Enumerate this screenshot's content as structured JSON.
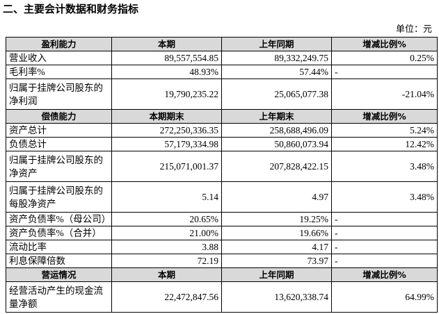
{
  "title": "二、主要会计数据和财务指标",
  "unit": "单位：元",
  "table": {
    "sections": [
      {
        "header": [
          "盈利能力",
          "本期",
          "上年同期",
          "增减比例%"
        ],
        "rows": [
          [
            [
              "营业收入"
            ],
            "89,557,554.85",
            "89,332,249.75",
            "0.25%"
          ],
          [
            [
              "毛利率%"
            ],
            "48.93%",
            "57.44%",
            "-"
          ],
          [
            [
              "归属于挂牌公司股东的",
              "净利润"
            ],
            "19,790,235.22",
            "25,065,077.38",
            "-21.04%"
          ]
        ]
      },
      {
        "header": [
          "偿债能力",
          "本期期末",
          "上年期末",
          "增减比例%"
        ],
        "rows": [
          [
            [
              "资产总计"
            ],
            "272,250,336.35",
            "258,688,496.09",
            "5.24%"
          ],
          [
            [
              "负债总计"
            ],
            "57,179,334.98",
            "50,860,073.94",
            "12.42%"
          ],
          [
            [
              "归属于挂牌公司股东的",
              "净资产"
            ],
            "215,071,001.37",
            "207,828,422.15",
            "3.48%"
          ],
          [
            [
              "归属于挂牌公司股东的",
              "每股净资产"
            ],
            "5.14",
            "4.97",
            "3.48%"
          ],
          [
            [
              "资产负债率%（母公司）"
            ],
            "20.65%",
            "19.25%",
            "-"
          ],
          [
            [
              "资产负债率%（合并）"
            ],
            "21.00%",
            "19.66%",
            "-"
          ],
          [
            [
              "流动比率"
            ],
            "3.88",
            "4.17",
            "-"
          ],
          [
            [
              "利息保障倍数"
            ],
            "72.19",
            "73.97",
            "-"
          ]
        ]
      },
      {
        "header": [
          "营运情况",
          "本期",
          "上年同期",
          "增减比例%"
        ],
        "rows": [
          [
            [
              "经营活动产生的现金流",
              "量净额"
            ],
            "22,472,847.56",
            "13,620,338.74",
            "64.99%"
          ]
        ]
      }
    ]
  }
}
